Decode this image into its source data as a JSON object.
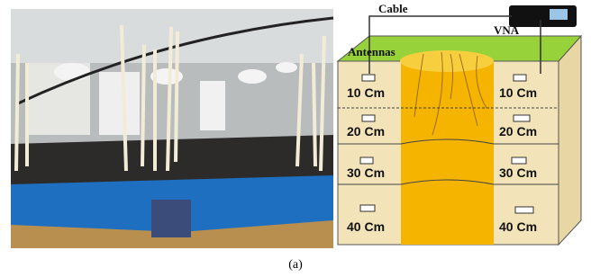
{
  "diagram": {
    "labels": {
      "cable": "Cable",
      "vna": "VNA",
      "antennas": "Antennas"
    },
    "left_depths": [
      "10 Cm",
      "20 Cm",
      "30 Cm",
      "40 Cm"
    ],
    "right_depths": [
      "10 Cm",
      "20 Cm",
      "30 Cm",
      "40 Cm"
    ]
  },
  "caption": "(a)"
}
